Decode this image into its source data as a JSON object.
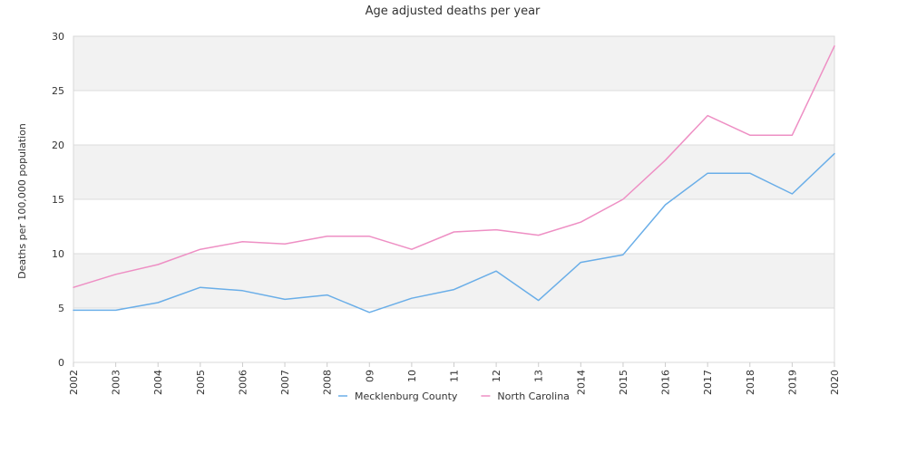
{
  "chart_data": {
    "type": "line",
    "title": "Age adjusted deaths per year",
    "xlabel": "",
    "ylabel": "Deaths per 100,000 population",
    "ylim": [
      0,
      30
    ],
    "yticks": [
      0,
      5,
      10,
      15,
      20,
      25,
      30
    ],
    "grid": true,
    "legend_position": "bottom",
    "categories": [
      "2002",
      "2003",
      "2004",
      "2005",
      "2006",
      "2007",
      "2008",
      "09",
      "10",
      "11",
      "12",
      "13",
      "2014",
      "2015",
      "2016",
      "2017",
      "2018",
      "2019",
      "2020"
    ],
    "series": [
      {
        "name": "Mecklenburg County",
        "color": "#6aaee8",
        "values": [
          4.8,
          4.8,
          5.5,
          6.9,
          6.6,
          5.8,
          6.2,
          4.6,
          5.9,
          6.7,
          8.4,
          5.7,
          9.2,
          9.9,
          14.5,
          17.4,
          17.4,
          15.5,
          19.2
        ]
      },
      {
        "name": "North Carolina",
        "color": "#ee8fc4",
        "values": [
          6.9,
          8.1,
          9.0,
          10.4,
          11.1,
          10.9,
          11.6,
          11.6,
          10.4,
          12.0,
          12.2,
          11.7,
          12.9,
          15.0,
          18.6,
          22.7,
          20.9,
          20.9,
          29.1
        ]
      }
    ]
  }
}
